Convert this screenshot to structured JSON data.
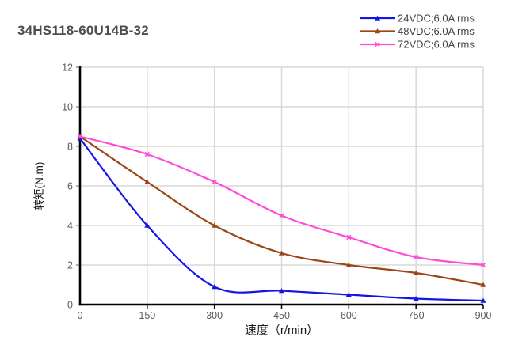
{
  "title": "34HS118-60U14B-32",
  "chart_data": {
    "type": "line",
    "title": "34HS118-60U14B-32",
    "xlabel": "速度（r/min）",
    "ylabel": "转矩(N.m)",
    "x": [
      0,
      150,
      300,
      450,
      600,
      750,
      900
    ],
    "series": [
      {
        "name": "24VDC;6.0A rms",
        "color": "#1414E8",
        "marker": "triangle",
        "values": [
          8.4,
          4.0,
          0.9,
          0.7,
          0.5,
          0.3,
          0.2
        ]
      },
      {
        "name": "48VDC;6.0A rms",
        "color": "#9C4517",
        "marker": "triangle",
        "values": [
          8.5,
          6.2,
          4.0,
          2.6,
          2.0,
          1.6,
          1.0
        ]
      },
      {
        "name": "72VDC;6.0A rms",
        "color": "#FF4BD8",
        "marker": "x",
        "values": [
          8.5,
          7.6,
          6.2,
          4.5,
          3.4,
          2.4,
          2.0
        ]
      }
    ],
    "xlim": [
      0,
      900
    ],
    "ylim": [
      0,
      12
    ],
    "x_ticks": [
      0,
      150,
      300,
      450,
      600,
      750,
      900
    ],
    "y_ticks": [
      0,
      2,
      4,
      6,
      8,
      10,
      12
    ],
    "grid": true,
    "smooth_lines": true,
    "legend_position": "top-right",
    "colors": {
      "grid": "#D9D9D9",
      "axis": "#000000",
      "tick_label": "#595959",
      "title": "#4D4D4D",
      "legend_text": "#3F3F3F"
    }
  }
}
